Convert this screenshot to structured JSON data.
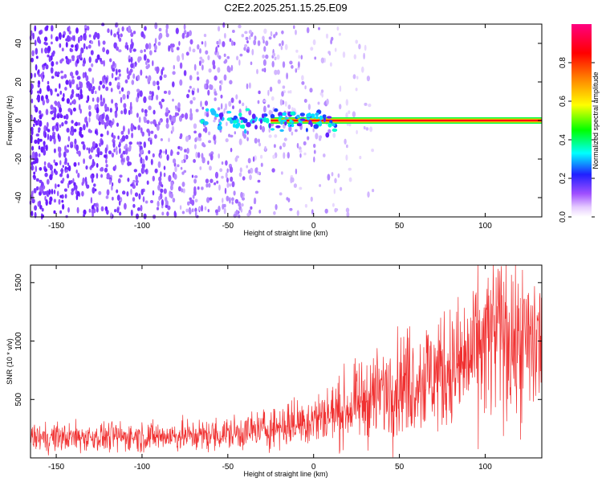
{
  "title": "C2E2.2025.251.15.25.E09",
  "chart_data": [
    {
      "type": "heatmap",
      "xlabel": "Height of straight line (km)",
      "ylabel": "Frequency (Hz)",
      "xlim": [
        -165,
        133
      ],
      "ylim": [
        -50,
        50
      ],
      "xticks": [
        -150,
        -100,
        -50,
        0,
        50,
        100
      ],
      "yticks": [
        -40,
        -20,
        0,
        20,
        40
      ],
      "colorbar": {
        "label": "Normalized spectral amplitude",
        "range": [
          0,
          1
        ],
        "ticks": [
          "0.0",
          "0.2",
          "0.4",
          "0.6",
          "0.8"
        ]
      },
      "features": {
        "noise_region_x_km": [
          -165,
          10
        ],
        "tone_frequency_hz": 0,
        "tone_start_x_km": -25
      }
    },
    {
      "type": "line",
      "xlabel": "Height of straight line (km)",
      "ylabel": "SNR (10 * v/v)",
      "xlim": [
        -165,
        133
      ],
      "ylim": [
        0,
        1650
      ],
      "xticks": [
        -150,
        -100,
        -50,
        0,
        50,
        100
      ],
      "yticks": [
        500,
        1000,
        1500
      ],
      "series": [
        {
          "name": "SNR",
          "color": "#f03030",
          "x": [
            -165,
            -150,
            -120,
            -90,
            -60,
            -40,
            -20,
            0,
            20,
            35,
            50,
            70,
            85,
            95,
            105,
            112,
            120,
            133
          ],
          "y": [
            170,
            175,
            180,
            185,
            195,
            220,
            270,
            330,
            420,
            530,
            640,
            720,
            780,
            900,
            1050,
            1080,
            950,
            1000
          ]
        }
      ]
    }
  ]
}
